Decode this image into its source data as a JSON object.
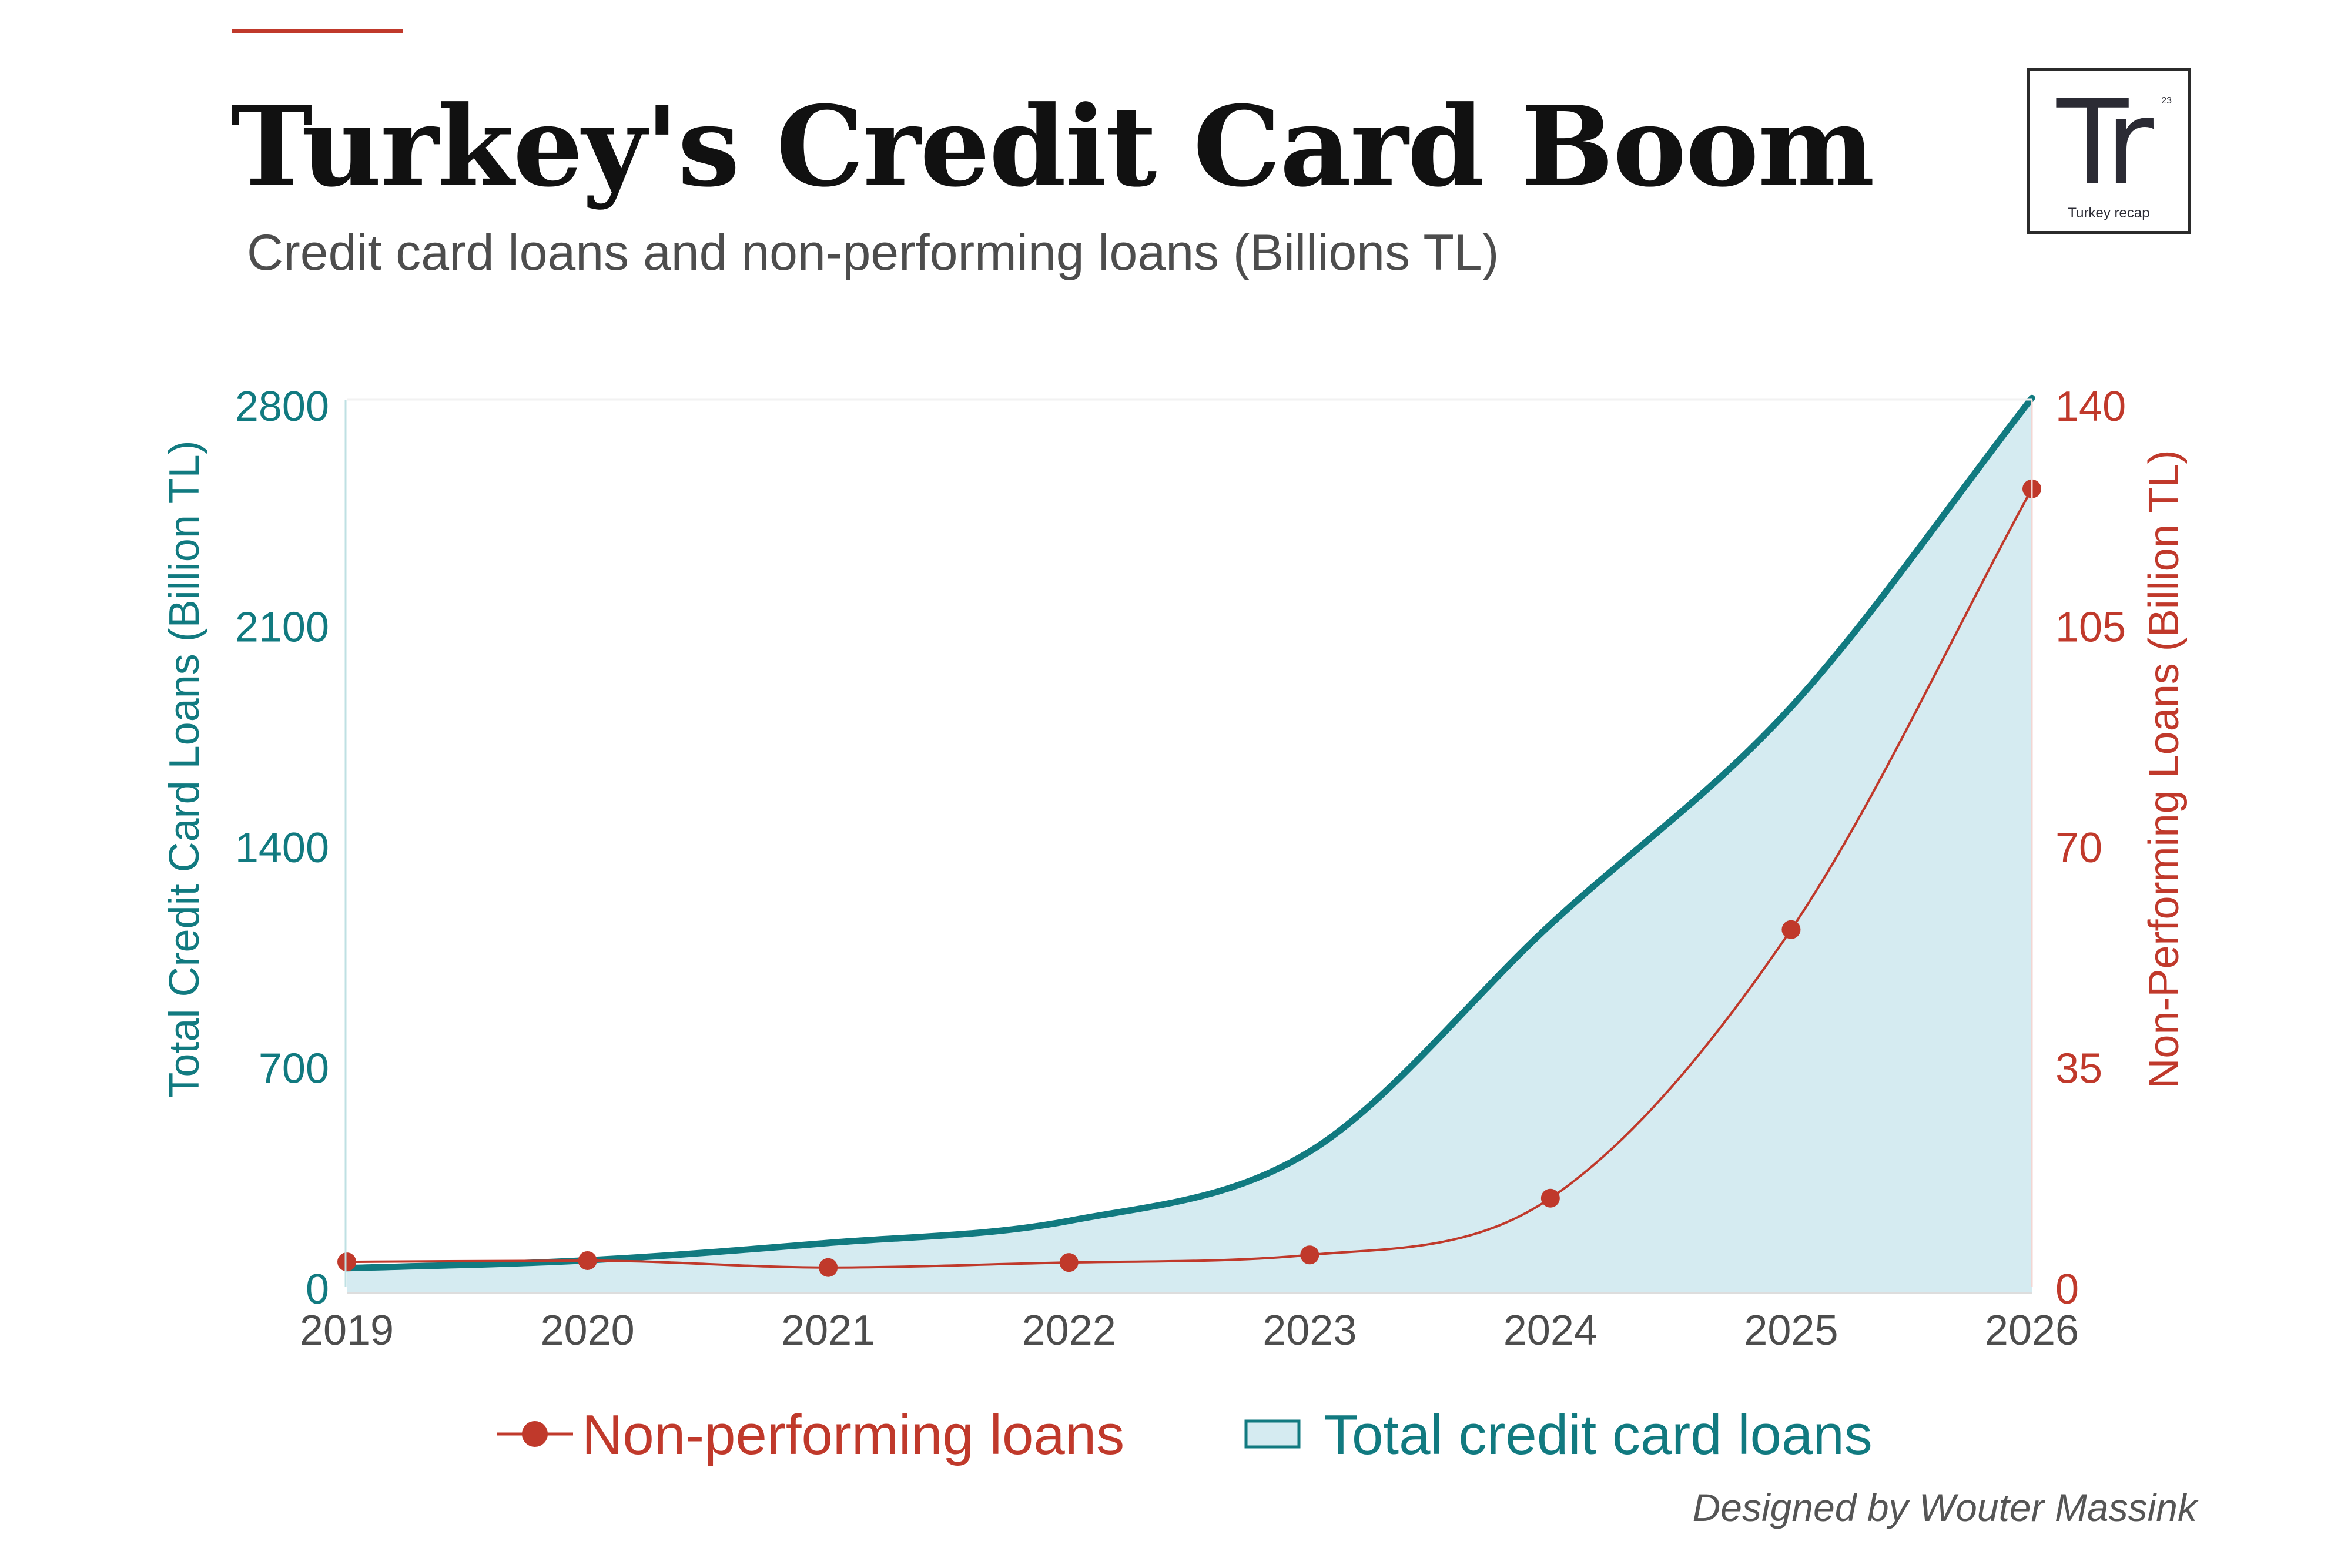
{
  "colors": {
    "accent_red": "#c0392b",
    "teal": "#117a80",
    "area_fill": "#d5ebf1",
    "tick_gray": "#4d4d4d"
  },
  "header": {
    "title": "Turkey's Credit Card Boom",
    "subtitle": "Credit card loans and non-performing loans (Billions TL)"
  },
  "logo": {
    "mark": "Tr",
    "number": "23",
    "text": "Turkey recap"
  },
  "footer": {
    "credit": "Designed by Wouter Massink"
  },
  "chart_data": {
    "type": "area",
    "title": "",
    "x": [
      "2019",
      "2020",
      "2021",
      "2022",
      "2023",
      "2024",
      "2025",
      "2026"
    ],
    "xlim": [
      2019,
      2026
    ],
    "grid": false,
    "legend_position": "bottom-center",
    "y_left": {
      "label": "Total Credit Card Loans (Billion TL)",
      "ticks": [
        0,
        700,
        1400,
        2100,
        2800
      ],
      "ylim": [
        0,
        2800
      ]
    },
    "y_right": {
      "label": "Non-Performing Loans (Billion TL)",
      "ticks": [
        0,
        35,
        70,
        105,
        140
      ],
      "ylim": [
        0,
        140
      ]
    },
    "series": [
      {
        "name": "Total credit card loans",
        "type": "area",
        "axis": "left",
        "color": "#117a80",
        "fill": "#d5ebf1",
        "smooth": true,
        "values": [
          60,
          85,
          140,
          210,
          430,
          1150,
          1840,
          2820
        ]
      },
      {
        "name": "Non-performing loans",
        "type": "line",
        "axis": "right",
        "color": "#c0392b",
        "markers": true,
        "smooth": true,
        "values": [
          4.0,
          4.2,
          3.1,
          3.9,
          5.1,
          14.1,
          56.7,
          126.6
        ]
      }
    ]
  }
}
